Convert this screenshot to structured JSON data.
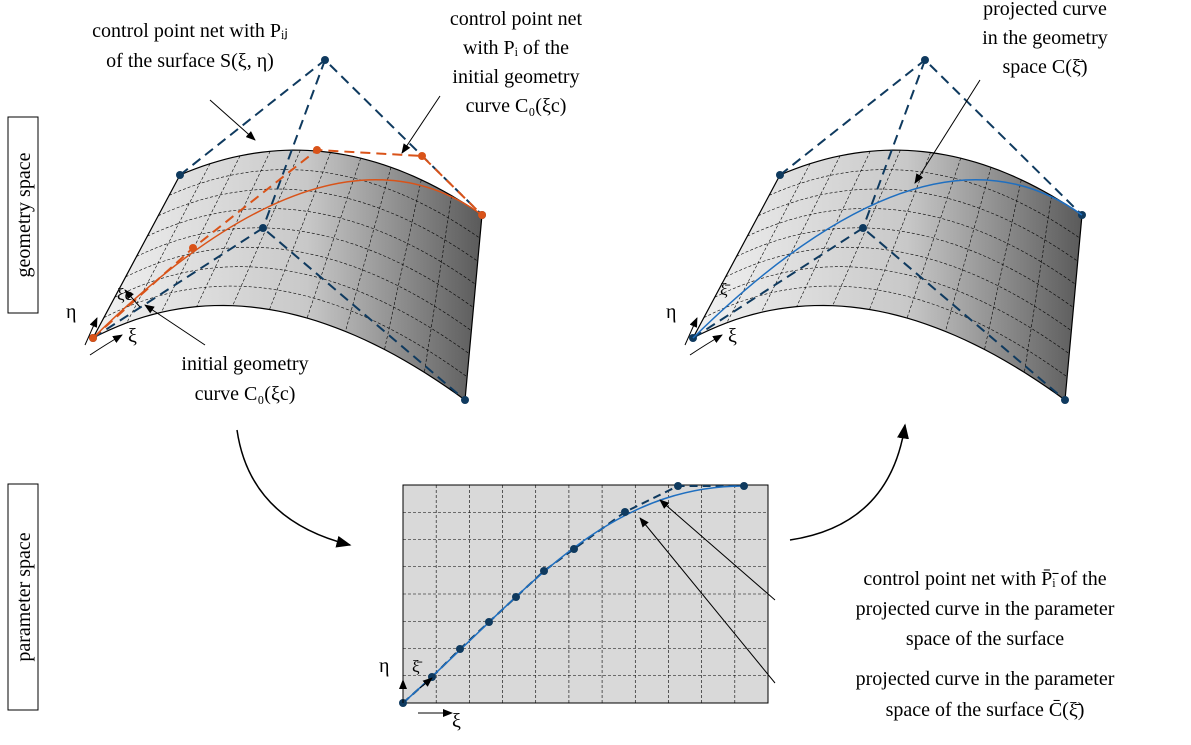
{
  "side_labels": {
    "geometry": "geometry space",
    "parameter": "parameter space"
  },
  "labels": {
    "surface_net": [
      "control point net with Pᵢⱼ",
      "of the surface S(ξ, η)"
    ],
    "initial_net": [
      "control point net",
      "with Pᵢ of the",
      "initial geometry",
      "curve C₀(ξc)"
    ],
    "initial_curve": [
      "initial geometry",
      "curve C₀(ξc)"
    ],
    "projected_geometry": [
      "projected curve",
      "in the geometry",
      "space C(ξ̄)"
    ],
    "projected_net": [
      "control point net with P̄ᵢ̄ of the",
      "projected curve in the parameter",
      "space of the surface"
    ],
    "projected_parameter": [
      "projected curve in the parameter",
      "space of the surface C̄(ξ̄)"
    ]
  },
  "axes": {
    "eta": "η",
    "xi": "ξ",
    "xi_c": "ξc",
    "xi_bar": "ξ̄"
  }
}
